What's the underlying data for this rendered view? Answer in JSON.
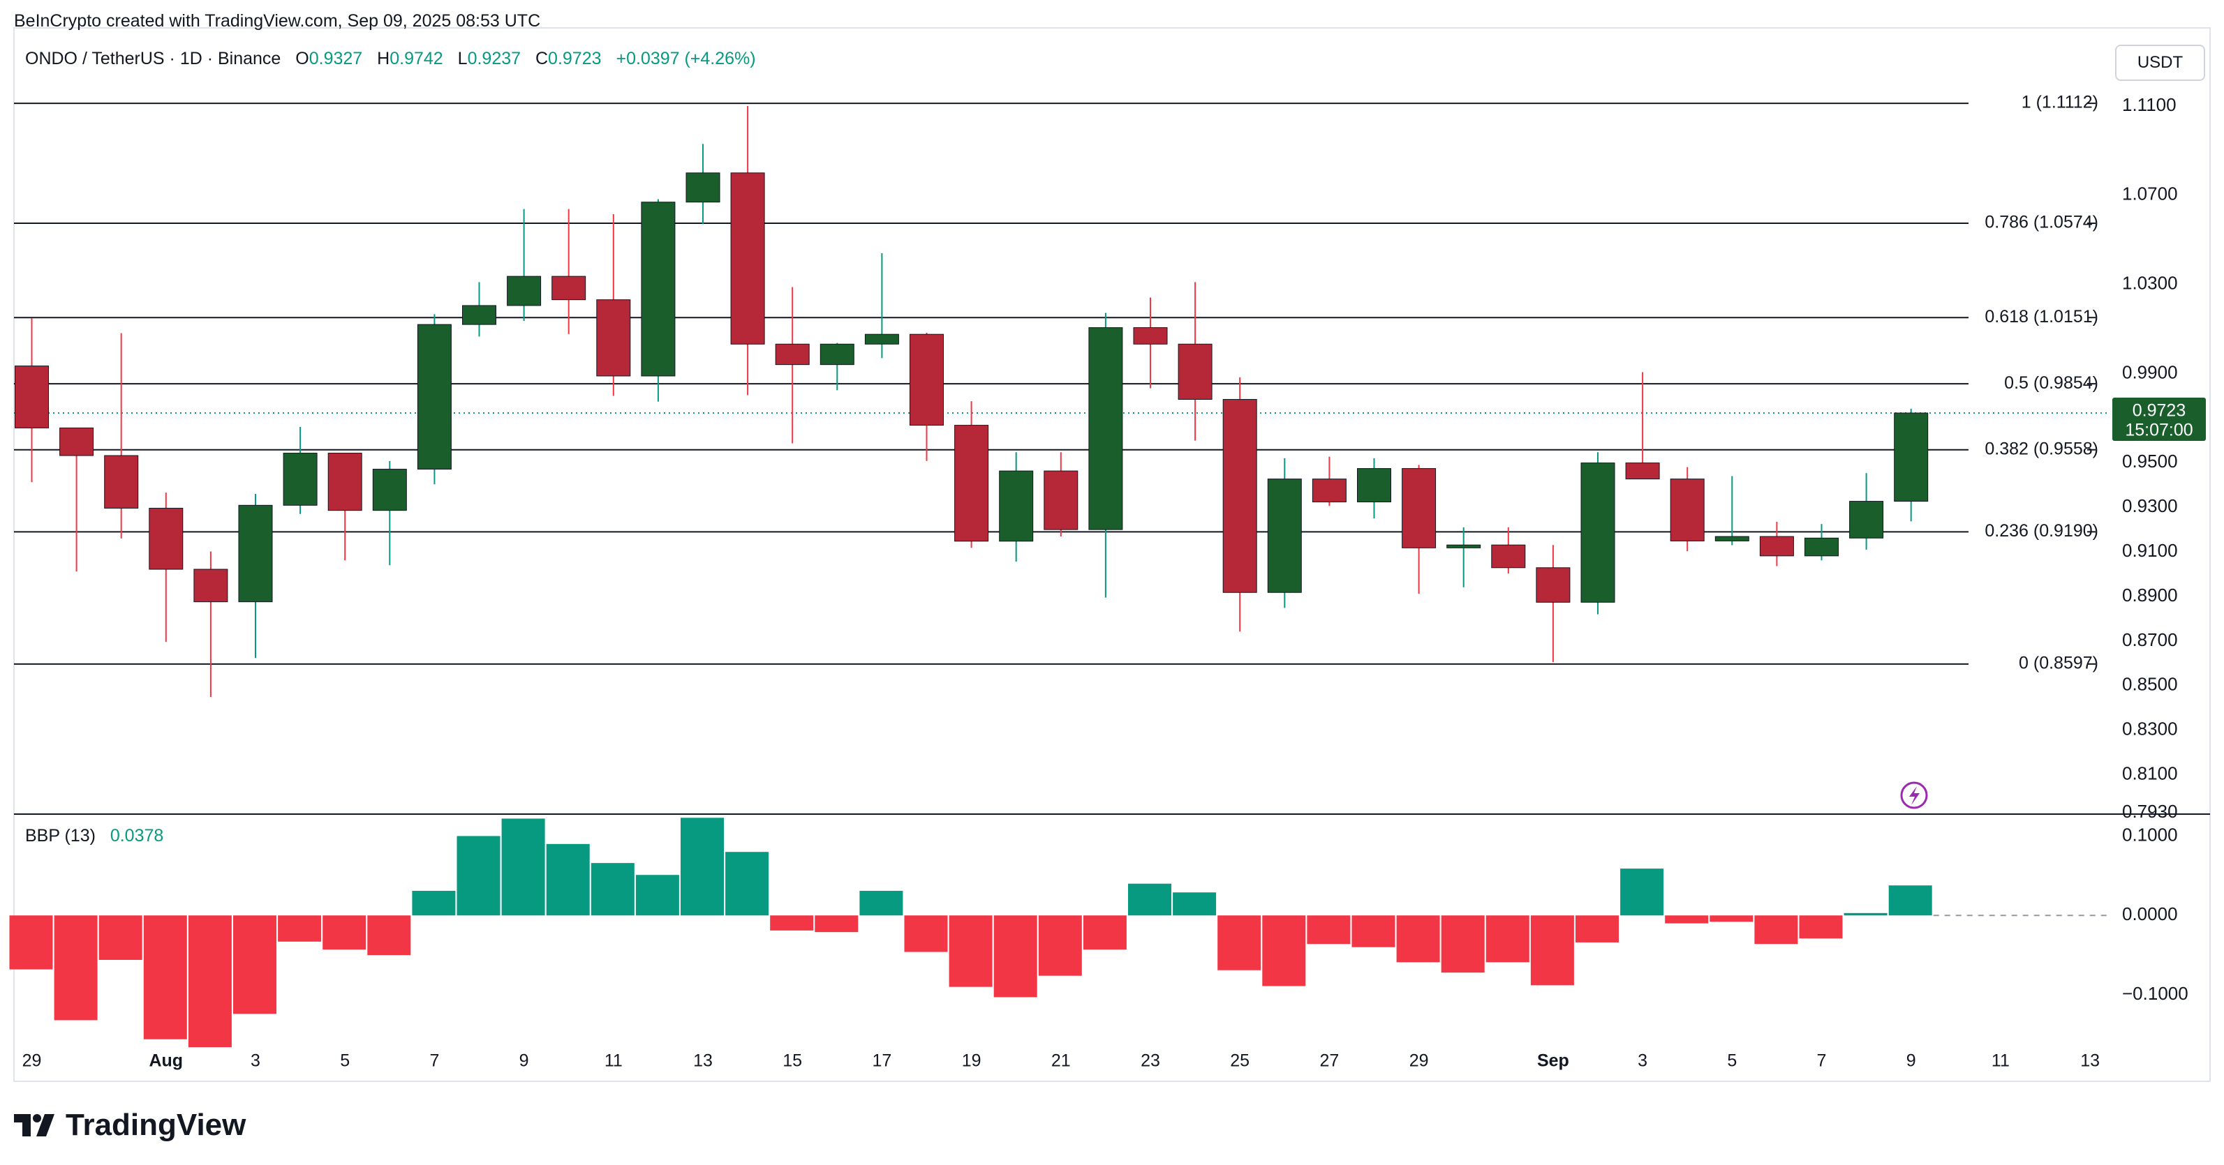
{
  "header": {
    "credit": "BeInCrypto created with TradingView.com, Sep 09, 2025 08:53 UTC",
    "symbol": "ONDO / TetherUS · 1D · Binance",
    "open_label": "O",
    "open": "0.9327",
    "high_label": "H",
    "high": "0.9742",
    "low_label": "L",
    "low": "0.9237",
    "close_label": "C",
    "close": "0.9723",
    "change": "+0.0397 (+4.26%)",
    "currency_button": "USDT"
  },
  "brand": {
    "name": "TradingView",
    "icon": "tradingview-logo-icon"
  },
  "colors": {
    "up": "#1a5e2c",
    "down": "#b62838",
    "wick_up": "#089981",
    "wick_down": "#f23645",
    "hist_pos": "#089981",
    "hist_neg": "#f23645",
    "grid": "#131722",
    "price_label_bg": "#1a5e2c"
  },
  "chart_data": [
    {
      "type": "candlestick",
      "title": "ONDO / TetherUS · 1D · Binance",
      "x": [
        "Jul 29",
        "Jul 30",
        "Jul 31",
        "Aug 1",
        "Aug 2",
        "Aug 3",
        "Aug 4",
        "Aug 5",
        "Aug 6",
        "Aug 7",
        "Aug 8",
        "Aug 9",
        "Aug 10",
        "Aug 11",
        "Aug 12",
        "Aug 13",
        "Aug 14",
        "Aug 15",
        "Aug 16",
        "Aug 17",
        "Aug 18",
        "Aug 19",
        "Aug 20",
        "Aug 21",
        "Aug 22",
        "Aug 23",
        "Aug 24",
        "Aug 25",
        "Aug 26",
        "Aug 27",
        "Aug 28",
        "Aug 29",
        "Aug 30",
        "Aug 31",
        "Sep 1",
        "Sep 2",
        "Sep 3",
        "Sep 4",
        "Sep 5",
        "Sep 6",
        "Sep 7",
        "Sep 8",
        "Sep 9"
      ],
      "ohlc": [
        [
          0.9934,
          1.0148,
          0.9413,
          0.9656
        ],
        [
          0.9656,
          0.9627,
          0.9012,
          0.9532
        ],
        [
          0.9532,
          1.0081,
          0.916,
          0.9296
        ],
        [
          0.9296,
          0.9366,
          0.8696,
          0.9022
        ],
        [
          0.9022,
          0.9102,
          0.8449,
          0.8876
        ],
        [
          0.8876,
          0.936,
          0.8624,
          0.9309
        ],
        [
          0.9309,
          0.9661,
          0.927,
          0.9543
        ],
        [
          0.9543,
          0.9543,
          0.9062,
          0.9286
        ],
        [
          0.9286,
          0.9507,
          0.904,
          0.9471
        ],
        [
          0.9471,
          1.0166,
          0.9403,
          1.012
        ],
        [
          1.012,
          1.031,
          1.0066,
          1.0205
        ],
        [
          1.0205,
          1.0638,
          1.0136,
          1.0336
        ],
        [
          1.0336,
          1.0638,
          1.0077,
          1.0231
        ],
        [
          1.0231,
          1.0615,
          0.98,
          0.9889
        ],
        [
          0.9889,
          1.0682,
          0.9774,
          1.0669
        ],
        [
          1.0669,
          1.093,
          1.057,
          1.08
        ],
        [
          1.08,
          1.11,
          0.9803,
          1.0032
        ],
        [
          1.0032,
          1.0288,
          0.9587,
          0.994
        ],
        [
          0.994,
          1.0037,
          0.9825,
          1.0032
        ],
        [
          1.0032,
          1.044,
          0.9969,
          1.0076
        ],
        [
          1.0076,
          1.0083,
          0.9508,
          0.9668
        ],
        [
          0.9668,
          0.9776,
          0.9118,
          0.9148
        ],
        [
          0.9148,
          0.9547,
          0.9056,
          0.9463
        ],
        [
          0.9463,
          0.9547,
          0.9169,
          0.92
        ],
        [
          0.92,
          1.0172,
          0.8895,
          1.0106
        ],
        [
          1.0106,
          1.0241,
          0.9834,
          1.0032
        ],
        [
          1.0032,
          1.031,
          0.9599,
          0.9784
        ],
        [
          0.9784,
          0.9883,
          0.8743,
          0.8918
        ],
        [
          0.8918,
          0.952,
          0.8849,
          0.9427
        ],
        [
          0.9427,
          0.9527,
          0.9306,
          0.9324
        ],
        [
          0.9324,
          0.952,
          0.925,
          0.9474
        ],
        [
          0.9474,
          0.949,
          0.8912,
          0.9118
        ],
        [
          0.9118,
          0.921,
          0.8941,
          0.9131
        ],
        [
          0.9131,
          0.921,
          0.9003,
          0.9029
        ],
        [
          0.9029,
          0.9131,
          0.8606,
          0.8874
        ],
        [
          0.8874,
          0.9547,
          0.882,
          0.9499
        ],
        [
          0.9499,
          0.9906,
          0.9427,
          0.9427
        ],
        [
          0.9427,
          0.948,
          0.9103,
          0.9149
        ],
        [
          0.9149,
          0.944,
          0.913,
          0.9169
        ],
        [
          0.9169,
          0.9235,
          0.9036,
          0.9082
        ],
        [
          0.9082,
          0.9225,
          0.9062,
          0.9162
        ],
        [
          0.9162,
          0.9453,
          0.911,
          0.9327
        ],
        [
          0.9327,
          0.9742,
          0.9237,
          0.9723
        ]
      ],
      "ylim": [
        0.793,
        1.12
      ],
      "y_ticks": [
        "1.1100",
        "1.0700",
        "1.0300",
        "0.9900",
        "0.9500",
        "0.9300",
        "0.9100",
        "0.8900",
        "0.8700",
        "0.8500",
        "0.8300",
        "0.8100",
        "0.7930"
      ],
      "x_ticks": [
        {
          "x": "Jul 29",
          "label": "29"
        },
        {
          "x": "Aug 1",
          "label": "Aug"
        },
        {
          "x": "Aug 3",
          "label": "3"
        },
        {
          "x": "Aug 5",
          "label": "5"
        },
        {
          "x": "Aug 7",
          "label": "7"
        },
        {
          "x": "Aug 9",
          "label": "9"
        },
        {
          "x": "Aug 11",
          "label": "11"
        },
        {
          "x": "Aug 13",
          "label": "13"
        },
        {
          "x": "Aug 15",
          "label": "15"
        },
        {
          "x": "Aug 17",
          "label": "17"
        },
        {
          "x": "Aug 19",
          "label": "19"
        },
        {
          "x": "Aug 21",
          "label": "21"
        },
        {
          "x": "Aug 23",
          "label": "23"
        },
        {
          "x": "Aug 25",
          "label": "25"
        },
        {
          "x": "Aug 27",
          "label": "27"
        },
        {
          "x": "Aug 29",
          "label": "29"
        },
        {
          "x": "Sep 1",
          "label": "Sep"
        },
        {
          "x": "Sep 3",
          "label": "3"
        },
        {
          "x": "Sep 5",
          "label": "5"
        },
        {
          "x": "Sep 7",
          "label": "7"
        },
        {
          "x": "Sep 9",
          "label": "9"
        },
        {
          "x": "Sep 11",
          "label": "11"
        },
        {
          "x": "Sep 13",
          "label": "13"
        }
      ],
      "fib_levels": [
        {
          "ratio": "1",
          "value": 1.1112,
          "label": "1 (1.1112)"
        },
        {
          "ratio": "0.786",
          "value": 1.0574,
          "label": "0.786 (1.0574)"
        },
        {
          "ratio": "0.618",
          "value": 1.0151,
          "label": "0.618 (1.0151)"
        },
        {
          "ratio": "0.5",
          "value": 0.9854,
          "label": "0.5 (0.9854)"
        },
        {
          "ratio": "0.382",
          "value": 0.9558,
          "label": "0.382 (0.9558)"
        },
        {
          "ratio": "0.236",
          "value": 0.919,
          "label": "0.236 (0.9190)"
        },
        {
          "ratio": "0",
          "value": 0.8597,
          "label": "0 (0.8597)"
        }
      ],
      "current_price": {
        "value": 0.9723,
        "label": "0.9723",
        "countdown": "15:07:00"
      }
    },
    {
      "type": "bar",
      "title": "BBP (13)",
      "current_value": "0.0378",
      "x": [
        "Jul 29",
        "Jul 30",
        "Jul 31",
        "Aug 1",
        "Aug 2",
        "Aug 3",
        "Aug 4",
        "Aug 5",
        "Aug 6",
        "Aug 7",
        "Aug 8",
        "Aug 9",
        "Aug 10",
        "Aug 11",
        "Aug 12",
        "Aug 13",
        "Aug 14",
        "Aug 15",
        "Aug 16",
        "Aug 17",
        "Aug 18",
        "Aug 19",
        "Aug 20",
        "Aug 21",
        "Aug 22",
        "Aug 23",
        "Aug 24",
        "Aug 25",
        "Aug 26",
        "Aug 27",
        "Aug 28",
        "Aug 29",
        "Aug 30",
        "Aug 31",
        "Sep 1",
        "Sep 2",
        "Sep 3",
        "Sep 4",
        "Sep 5",
        "Sep 6",
        "Sep 7",
        "Sep 8",
        "Sep 9"
      ],
      "values": [
        -0.068,
        -0.132,
        -0.056,
        -0.156,
        -0.166,
        -0.124,
        -0.033,
        -0.043,
        -0.05,
        0.031,
        0.1,
        0.122,
        0.09,
        0.066,
        0.051,
        0.123,
        0.08,
        -0.019,
        -0.021,
        0.031,
        -0.046,
        -0.09,
        -0.103,
        -0.076,
        -0.043,
        0.04,
        0.029,
        -0.069,
        -0.089,
        -0.036,
        -0.04,
        -0.059,
        -0.072,
        -0.059,
        -0.088,
        -0.034,
        0.059,
        -0.01,
        -0.008,
        -0.036,
        -0.029,
        0.003,
        0.0378
      ],
      "ylim": [
        -0.165,
        0.125
      ],
      "y_ticks": [
        "0.1000",
        "0.0000",
        "−0.1000"
      ]
    }
  ]
}
